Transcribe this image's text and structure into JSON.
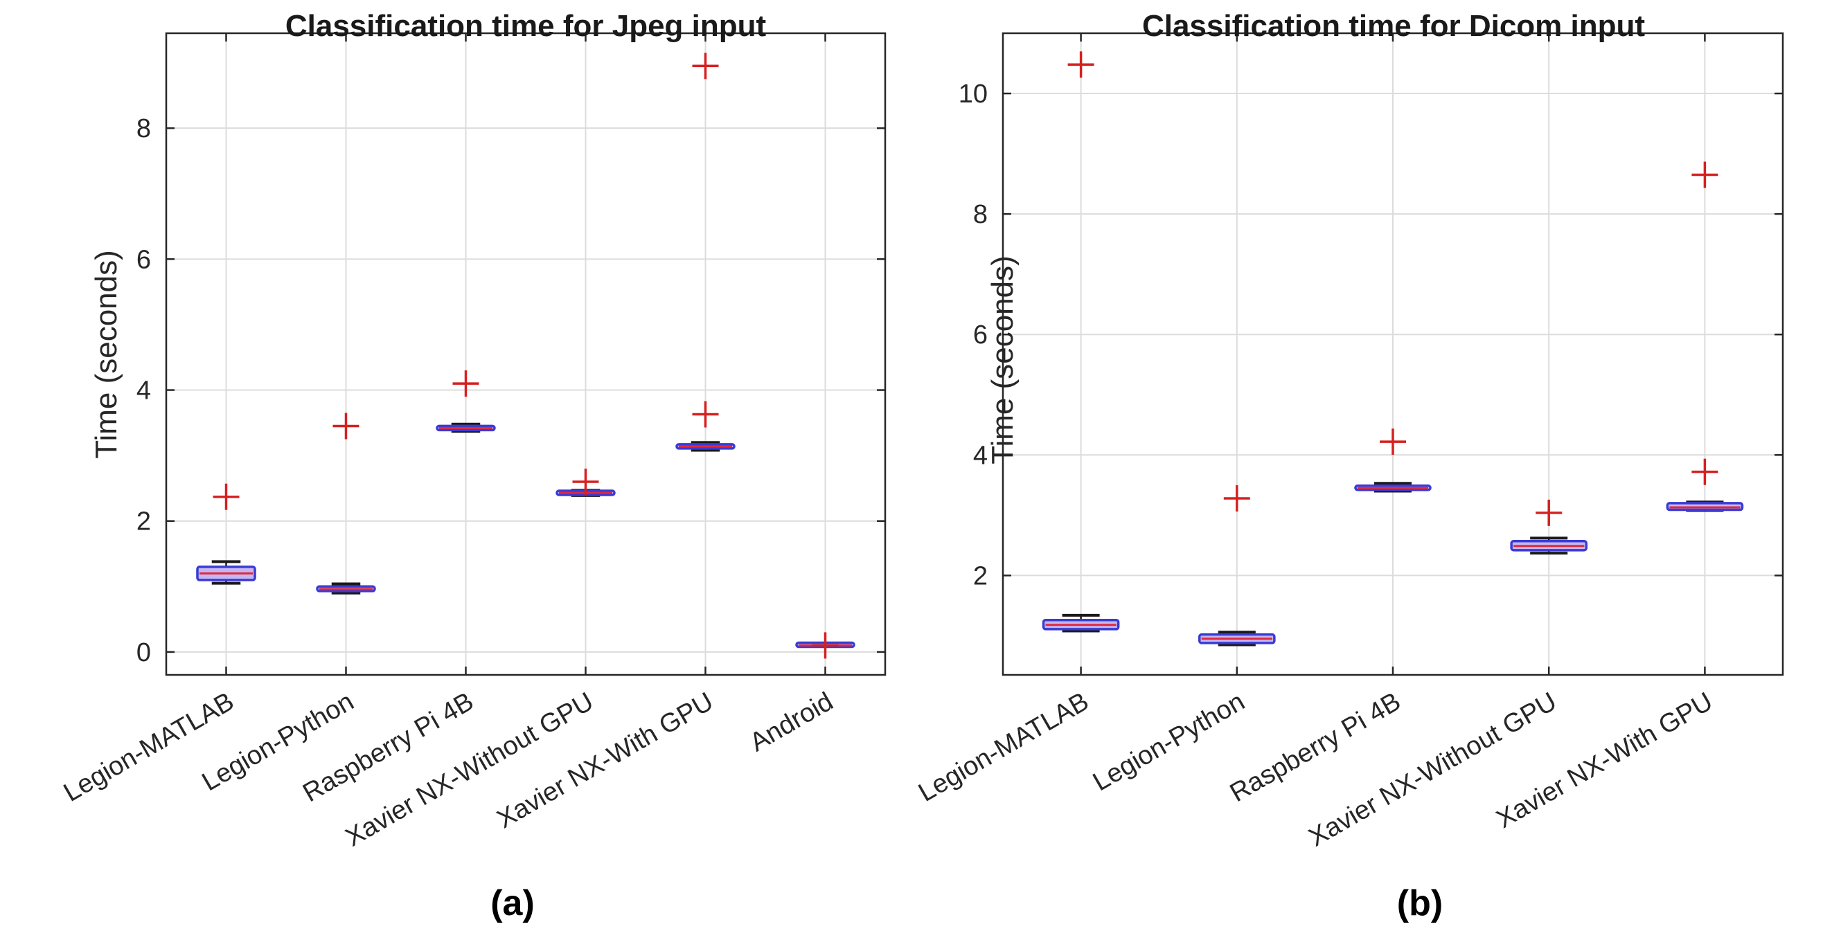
{
  "chart_data": [
    {
      "type": "box",
      "panel_label": "(a)",
      "title": "Classification time for Jpeg input",
      "xlabel": "",
      "ylabel": "Time (seconds)",
      "ylim": [
        -0.35,
        9.45
      ],
      "yticks": [
        0,
        2,
        4,
        6,
        8
      ],
      "grid": true,
      "categories": [
        "Legion-MATLAB",
        "Legion-Python",
        "Raspberry Pi 4B",
        "Xavier NX-Without GPU",
        "Xavier NX-With GPU",
        "Android"
      ],
      "boxes": [
        {
          "whisker_low": 1.05,
          "q1": 1.1,
          "median": 1.2,
          "q3": 1.3,
          "whisker_high": 1.38,
          "outliers": [
            2.37
          ]
        },
        {
          "whisker_low": 0.9,
          "q1": 0.93,
          "median": 0.96,
          "q3": 1.0,
          "whisker_high": 1.04,
          "outliers": [
            3.45
          ]
        },
        {
          "whisker_low": 3.37,
          "q1": 3.39,
          "median": 3.42,
          "q3": 3.45,
          "whisker_high": 3.48,
          "outliers": [
            4.1
          ]
        },
        {
          "whisker_low": 2.39,
          "q1": 2.41,
          "median": 2.43,
          "q3": 2.45,
          "whisker_high": 2.47,
          "outliers": [
            2.6
          ]
        },
        {
          "whisker_low": 3.08,
          "q1": 3.11,
          "median": 3.14,
          "q3": 3.17,
          "whisker_high": 3.2,
          "outliers": [
            3.63,
            8.95
          ]
        },
        {
          "whisker_low": 0.1,
          "q1": 0.1,
          "median": 0.1,
          "q3": 0.12,
          "whisker_high": 0.12,
          "outliers": [
            0.1
          ]
        }
      ]
    },
    {
      "type": "box",
      "panel_label": "(b)",
      "title": "Classification time for Dicom input",
      "xlabel": "",
      "ylabel": "Time (seconds)",
      "ylim": [
        0.35,
        11.0
      ],
      "yticks": [
        2,
        4,
        6,
        8,
        10
      ],
      "grid": true,
      "categories": [
        "Legion-MATLAB",
        "Legion-Python",
        "Raspberry Pi 4B",
        "Xavier NX-Without GPU",
        "Xavier NX-With GPU"
      ],
      "boxes": [
        {
          "whisker_low": 1.08,
          "q1": 1.11,
          "median": 1.18,
          "q3": 1.26,
          "whisker_high": 1.34,
          "outliers": [
            10.48
          ]
        },
        {
          "whisker_low": 0.85,
          "q1": 0.88,
          "median": 0.95,
          "q3": 1.02,
          "whisker_high": 1.06,
          "outliers": [
            3.28
          ]
        },
        {
          "whisker_low": 3.4,
          "q1": 3.42,
          "median": 3.45,
          "q3": 3.49,
          "whisker_high": 3.53,
          "outliers": [
            4.22
          ]
        },
        {
          "whisker_low": 2.37,
          "q1": 2.42,
          "median": 2.49,
          "q3": 2.57,
          "whisker_high": 2.62,
          "outliers": [
            3.04
          ]
        },
        {
          "whisker_low": 3.08,
          "q1": 3.09,
          "median": 3.13,
          "q3": 3.2,
          "whisker_high": 3.22,
          "outliers": [
            3.72,
            8.65
          ]
        }
      ]
    }
  ],
  "colors": {
    "box_edge": "#3a3ad6",
    "box_fill": "#c5b8f2",
    "median": "#e0283c",
    "whisker_cap": "#1a1a1a",
    "outlier": "#d62020",
    "grid": "#dcdcdc",
    "axis": "#262626"
  }
}
